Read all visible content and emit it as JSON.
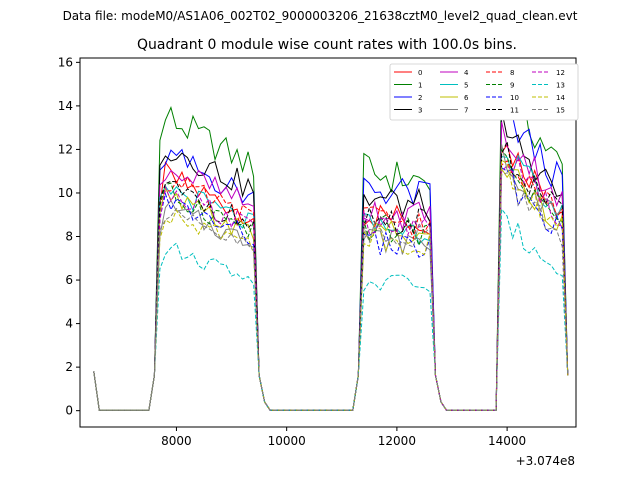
{
  "figure": {
    "suptitle": "Data file: modeM0/AS1A06_002T02_9000003206_21638cztM0_level2_quad_clean.evt",
    "offset_label": "+3.074e8"
  },
  "chart_data": {
    "type": "line",
    "title": "Quadrant 0 module wise count rates with 100.0s bins.",
    "xlabel": "",
    "ylabel": "",
    "x_offset": 307400000,
    "xlim": [
      6250,
      15250
    ],
    "ylim": [
      -0.75,
      16.2
    ],
    "xticks": [
      8000,
      10000,
      12000,
      14000
    ],
    "yticks": [
      0,
      2,
      4,
      6,
      8,
      10,
      12,
      14,
      16
    ],
    "grid": false,
    "legend": {
      "placement": "top-right",
      "columns": 4
    },
    "segments": [
      {
        "start": 7600,
        "end": 9500,
        "decay": 0.2,
        "ramp": 0.95,
        "wobble": 0.06
      },
      {
        "start": 11300,
        "end": 12700,
        "decay": 0.05,
        "ramp": 0.0,
        "wobble": 0.08
      },
      {
        "start": 13850,
        "end": 15100,
        "decay": 0.28,
        "ramp": 0.0,
        "wobble": 0.07
      }
    ],
    "off_pattern": {
      "edge_high": 1.8,
      "after_edge": 0.4,
      "baseline": 0.02
    },
    "series": [
      {
        "name": "0",
        "color": "#ff0000",
        "dash": "solid",
        "levels": [
          11.0,
          9.1,
          12.5
        ]
      },
      {
        "name": "1",
        "color": "#008000",
        "dash": "solid",
        "levels": [
          13.8,
          11.0,
          15.0
        ]
      },
      {
        "name": "2",
        "color": "#0000ff",
        "dash": "solid",
        "levels": [
          12.0,
          10.3,
          14.0
        ]
      },
      {
        "name": "3",
        "color": "#000000",
        "dash": "solid",
        "levels": [
          12.5,
          9.8,
          13.2
        ]
      },
      {
        "name": "4",
        "color": "#bf00bf",
        "dash": "solid",
        "levels": [
          11.5,
          9.3,
          13.0
        ]
      },
      {
        "name": "5",
        "color": "#00bfbf",
        "dash": "solid",
        "levels": [
          10.5,
          8.6,
          12.0
        ]
      },
      {
        "name": "6",
        "color": "#bfbf00",
        "dash": "solid",
        "levels": [
          10.0,
          8.3,
          11.5
        ]
      },
      {
        "name": "7",
        "color": "#808080",
        "dash": "solid",
        "levels": [
          9.5,
          8.0,
          11.8
        ]
      },
      {
        "name": "8",
        "color": "#ff0000",
        "dash": "dashed",
        "levels": [
          10.8,
          8.9,
          12.2
        ]
      },
      {
        "name": "9",
        "color": "#008000",
        "dash": "dashed",
        "levels": [
          10.2,
          8.5,
          11.6
        ]
      },
      {
        "name": "10",
        "color": "#0000ff",
        "dash": "dashed",
        "levels": [
          9.8,
          7.8,
          11.0
        ]
      },
      {
        "name": "11",
        "color": "#000000",
        "dash": "dashed",
        "levels": [
          10.5,
          9.0,
          12.0
        ]
      },
      {
        "name": "12",
        "color": "#bf00bf",
        "dash": "dashed",
        "levels": [
          10.4,
          8.7,
          11.8
        ]
      },
      {
        "name": "13",
        "color": "#00bfbf",
        "dash": "dashed",
        "levels": [
          7.6,
          6.0,
          8.8
        ]
      },
      {
        "name": "14",
        "color": "#bfbf00",
        "dash": "dashed",
        "levels": [
          9.4,
          8.0,
          11.2
        ]
      },
      {
        "name": "15",
        "color": "#808080",
        "dash": "dashed",
        "levels": [
          9.2,
          8.4,
          10.8
        ]
      }
    ]
  }
}
